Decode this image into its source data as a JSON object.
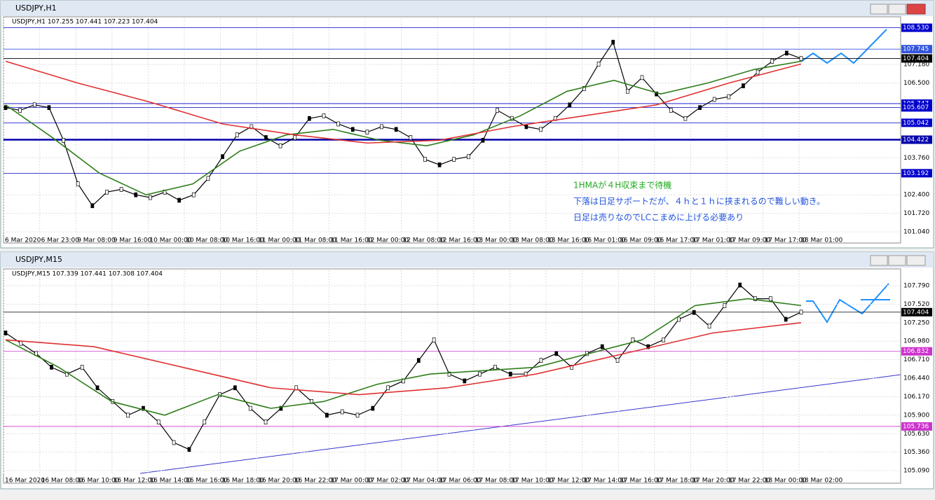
{
  "windows": [
    {
      "title": "USDJPY,H1",
      "header": "USDJPY,H1  107.255 107.441 107.223 107.404",
      "ylim": [
        100.94,
        108.88
      ],
      "yticks": [
        {
          "value": 107.18,
          "label": "107.180"
        },
        {
          "value": 106.5,
          "label": "106.500"
        },
        {
          "value": 103.76,
          "label": "103.760"
        },
        {
          "value": 102.4,
          "label": "102.400"
        },
        {
          "value": 101.72,
          "label": "101.720"
        },
        {
          "value": 101.04,
          "label": "101.040"
        }
      ],
      "levels": [
        {
          "value": 108.53,
          "label": "108.530",
          "color": "#0000cc"
        },
        {
          "value": 107.745,
          "label": "107.745",
          "color": "#3355dd"
        },
        {
          "value": 107.404,
          "label": "107.404",
          "color": "#000000"
        },
        {
          "value": 105.747,
          "label": "105.747",
          "color": "#0000cc"
        },
        {
          "value": 105.607,
          "label": "105.607",
          "color": "#0000cc"
        },
        {
          "value": 105.042,
          "label": "105.042",
          "color": "#0000cc"
        },
        {
          "value": 104.422,
          "label": "104.422",
          "color": "#0000aa"
        },
        {
          "value": 103.192,
          "label": "103.192",
          "color": "#0000cc"
        }
      ],
      "xlabels": [
        "6 Mar 2020",
        "6 Mar 23:00",
        "9 Mar 08:00",
        "9 Mar 16:00",
        "10 Mar 00:00",
        "10 Mar 08:00",
        "10 Mar 16:00",
        "11 Mar 00:00",
        "11 Mar 08:00",
        "11 Mar 16:00",
        "12 Mar 00:00",
        "12 Mar 08:00",
        "12 Mar 16:00",
        "13 Mar 00:00",
        "13 Mar 08:00",
        "13 Mar 16:00",
        "16 Mar 01:00",
        "16 Mar 09:00",
        "16 Mar 17:00",
        "17 Mar 01:00",
        "17 Mar 09:00",
        "17 Mar 17:00",
        "18 Mar 01:00"
      ],
      "series": [
        {
          "name": "USDJPY",
          "color": "#000000",
          "values": [
            105.6,
            105.5,
            105.7,
            105.6,
            104.4,
            102.8,
            102.0,
            102.5,
            102.6,
            102.4,
            102.3,
            102.5,
            102.2,
            102.4,
            103.0,
            103.8,
            104.6,
            104.9,
            104.5,
            104.2,
            104.5,
            105.2,
            105.3,
            105.0,
            104.8,
            104.7,
            104.9,
            104.8,
            104.5,
            103.7,
            103.5,
            103.7,
            103.8,
            104.4,
            105.5,
            105.2,
            104.9,
            104.8,
            105.2,
            105.7,
            106.3,
            107.2,
            108.0,
            106.2,
            106.7,
            106.1,
            105.5,
            105.2,
            105.6,
            105.9,
            106.0,
            106.4,
            106.9,
            107.3,
            107.6,
            107.4
          ]
        },
        {
          "name": "HMA",
          "color": "#2e7d1a",
          "values": [
            105.7,
            104.5,
            103.2,
            102.4,
            102.8,
            104.0,
            104.6,
            104.8,
            104.4,
            104.2,
            104.6,
            105.3,
            106.2,
            106.6,
            106.1,
            106.5,
            107.0,
            107.3
          ]
        },
        {
          "name": "MA",
          "color": "#e03030",
          "values": [
            107.3,
            106.5,
            105.8,
            105.0,
            104.6,
            104.3,
            104.4,
            104.9,
            105.3,
            105.7,
            106.5,
            107.2
          ]
        }
      ],
      "annotations": [
        {
          "text": "1HMAが４H収束まで待機",
          "color": "#22aa22"
        },
        {
          "text": "下落は日足サポートだが、４ｈと１ｈに挟まれるので難しい動き。",
          "color": "#2255dd"
        },
        {
          "text": "日足は売りなのでLCこまめに上げる必要あり",
          "color": "#2255dd"
        }
      ]
    },
    {
      "title": "USDJPY,M15",
      "header": "USDJPY,M15  107.339 107.441 107.308 107.404",
      "ylim": [
        105.03,
        108.015
      ],
      "yticks": [
        {
          "value": 107.79,
          "label": "107.790"
        },
        {
          "value": 107.52,
          "label": "107.520"
        },
        {
          "value": 107.25,
          "label": "107.250"
        },
        {
          "value": 106.98,
          "label": "106.980"
        },
        {
          "value": 106.71,
          "label": "106.710"
        },
        {
          "value": 106.44,
          "label": "106.440"
        },
        {
          "value": 106.17,
          "label": "106.170"
        },
        {
          "value": 105.9,
          "label": "105.900"
        },
        {
          "value": 105.63,
          "label": "105.630"
        },
        {
          "value": 105.36,
          "label": "105.360"
        },
        {
          "value": 105.09,
          "label": "105.090"
        }
      ],
      "levels": [
        {
          "value": 107.404,
          "label": "107.404",
          "color": "#000000"
        },
        {
          "value": 106.832,
          "label": "106.832",
          "color": "#cc33cc"
        },
        {
          "value": 105.736,
          "label": "105.736",
          "color": "#cc33cc"
        }
      ],
      "xlabels": [
        "16 Mar 2020",
        "16 Mar 08:00",
        "16 Mar 10:00",
        "16 Mar 12:00",
        "16 Mar 14:00",
        "16 Mar 16:00",
        "16 Mar 18:00",
        "16 Mar 20:00",
        "16 Mar 22:00",
        "17 Mar 00:00",
        "17 Mar 02:00",
        "17 Mar 04:00",
        "17 Mar 06:00",
        "17 Mar 08:00",
        "17 Mar 10:00",
        "17 Mar 12:00",
        "17 Mar 14:00",
        "17 Mar 16:00",
        "17 Mar 18:00",
        "17 Mar 20:00",
        "17 Mar 22:00",
        "18 Mar 00:00",
        "18 Mar 02:00"
      ],
      "series": [
        {
          "name": "USDJPY",
          "color": "#000000",
          "values": [
            107.1,
            106.95,
            106.8,
            106.6,
            106.5,
            106.6,
            106.3,
            106.1,
            105.9,
            106.0,
            105.8,
            105.5,
            105.4,
            105.8,
            106.2,
            106.3,
            106.0,
            105.8,
            106.0,
            106.3,
            106.1,
            105.9,
            105.95,
            105.9,
            106.0,
            106.3,
            106.4,
            106.7,
            107.0,
            106.5,
            106.4,
            106.5,
            106.6,
            106.5,
            106.5,
            106.7,
            106.8,
            106.6,
            106.8,
            106.9,
            106.7,
            107.0,
            106.9,
            107.0,
            107.3,
            107.4,
            107.2,
            107.5,
            107.8,
            107.6,
            107.6,
            107.3,
            107.404
          ]
        },
        {
          "name": "HMA",
          "color": "#2e7d1a",
          "values": [
            107.0,
            106.6,
            106.1,
            105.9,
            106.2,
            106.0,
            106.1,
            106.35,
            106.5,
            106.55,
            106.6,
            106.8,
            107.0,
            107.5,
            107.6,
            107.5
          ]
        },
        {
          "name": "MA",
          "color": "#e03030",
          "values": [
            107.0,
            106.9,
            106.6,
            106.3,
            106.2,
            106.3,
            106.5,
            106.8,
            107.1,
            107.25
          ]
        }
      ],
      "annotations": []
    }
  ]
}
